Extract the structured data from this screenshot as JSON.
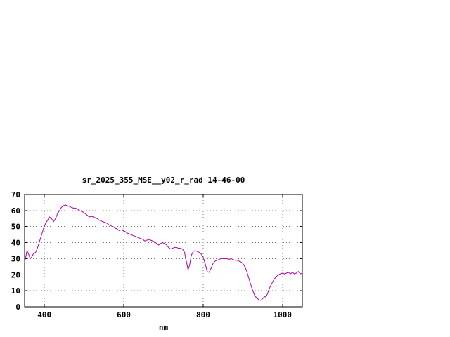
{
  "window": {
    "background": "#ffffff"
  },
  "chart_data": {
    "type": "line",
    "title": "sr_2025_355_MSE__y02_r_rad 14-46-00",
    "xlabel": "nm",
    "ylabel": "",
    "xlim": [
      350,
      1050
    ],
    "ylim": [
      0,
      70
    ],
    "xticks": [
      400,
      600,
      800,
      1000
    ],
    "yticks": [
      0,
      10,
      20,
      30,
      40,
      50,
      60,
      70
    ],
    "grid": true,
    "legend": "none",
    "line_color": "#aa00aa",
    "border_color": "#000000",
    "grid_color": "#777777",
    "points": [
      [
        350,
        28
      ],
      [
        353,
        31
      ],
      [
        356,
        35
      ],
      [
        360,
        33
      ],
      [
        364,
        30
      ],
      [
        368,
        31
      ],
      [
        372,
        33
      ],
      [
        378,
        34
      ],
      [
        383,
        37
      ],
      [
        388,
        41
      ],
      [
        393,
        45
      ],
      [
        398,
        49
      ],
      [
        403,
        52
      ],
      [
        408,
        54
      ],
      [
        413,
        56
      ],
      [
        418,
        55
      ],
      [
        423,
        53
      ],
      [
        428,
        55
      ],
      [
        433,
        58
      ],
      [
        438,
        60
      ],
      [
        443,
        62
      ],
      [
        448,
        63
      ],
      [
        453,
        63.5
      ],
      [
        458,
        63
      ],
      [
        463,
        62.5
      ],
      [
        468,
        62
      ],
      [
        473,
        61.5
      ],
      [
        478,
        61.5
      ],
      [
        483,
        61
      ],
      [
        488,
        60
      ],
      [
        493,
        59.5
      ],
      [
        498,
        59
      ],
      [
        503,
        58
      ],
      [
        508,
        57
      ],
      [
        513,
        56
      ],
      [
        518,
        56.5
      ],
      [
        523,
        56
      ],
      [
        528,
        55.5
      ],
      [
        533,
        55
      ],
      [
        538,
        54
      ],
      [
        543,
        53.5
      ],
      [
        548,
        53
      ],
      [
        553,
        52.5
      ],
      [
        558,
        52
      ],
      [
        563,
        51
      ],
      [
        568,
        50.5
      ],
      [
        573,
        50
      ],
      [
        578,
        49
      ],
      [
        583,
        48.5
      ],
      [
        588,
        47.5
      ],
      [
        593,
        48
      ],
      [
        598,
        47.5
      ],
      [
        603,
        47
      ],
      [
        608,
        46
      ],
      [
        613,
        45.5
      ],
      [
        618,
        45
      ],
      [
        623,
        44.5
      ],
      [
        628,
        44
      ],
      [
        633,
        43.5
      ],
      [
        638,
        43
      ],
      [
        643,
        42.5
      ],
      [
        648,
        42
      ],
      [
        653,
        41
      ],
      [
        658,
        41.5
      ],
      [
        663,
        42
      ],
      [
        668,
        41.5
      ],
      [
        673,
        41
      ],
      [
        678,
        40.5
      ],
      [
        683,
        39.5
      ],
      [
        688,
        38.5
      ],
      [
        693,
        39.5
      ],
      [
        698,
        40
      ],
      [
        703,
        39.5
      ],
      [
        708,
        38.5
      ],
      [
        713,
        37
      ],
      [
        718,
        36
      ],
      [
        723,
        36.5
      ],
      [
        728,
        37
      ],
      [
        733,
        37
      ],
      [
        738,
        36.5
      ],
      [
        743,
        36.5
      ],
      [
        748,
        36
      ],
      [
        753,
        34
      ],
      [
        758,
        28
      ],
      [
        762,
        23
      ],
      [
        766,
        26
      ],
      [
        770,
        32
      ],
      [
        775,
        34.5
      ],
      [
        780,
        35
      ],
      [
        785,
        34.5
      ],
      [
        790,
        34
      ],
      [
        795,
        33
      ],
      [
        800,
        31
      ],
      [
        805,
        27
      ],
      [
        810,
        22
      ],
      [
        815,
        21.5
      ],
      [
        820,
        24
      ],
      [
        825,
        27
      ],
      [
        830,
        28.5
      ],
      [
        835,
        29
      ],
      [
        840,
        29.5
      ],
      [
        845,
        30
      ],
      [
        850,
        30
      ],
      [
        855,
        30
      ],
      [
        860,
        30
      ],
      [
        865,
        29.5
      ],
      [
        870,
        30
      ],
      [
        875,
        29.5
      ],
      [
        880,
        29
      ],
      [
        885,
        29
      ],
      [
        890,
        28.5
      ],
      [
        895,
        28
      ],
      [
        900,
        27
      ],
      [
        905,
        25
      ],
      [
        910,
        22
      ],
      [
        915,
        18
      ],
      [
        920,
        14
      ],
      [
        925,
        10
      ],
      [
        930,
        7
      ],
      [
        935,
        5.5
      ],
      [
        940,
        4.5
      ],
      [
        945,
        4
      ],
      [
        950,
        5
      ],
      [
        955,
        6.5
      ],
      [
        958,
        6
      ],
      [
        962,
        8
      ],
      [
        966,
        11
      ],
      [
        970,
        13
      ],
      [
        975,
        15.5
      ],
      [
        980,
        17.5
      ],
      [
        985,
        19
      ],
      [
        990,
        20
      ],
      [
        995,
        20.5
      ],
      [
        1000,
        21
      ],
      [
        1005,
        20.5
      ],
      [
        1010,
        21
      ],
      [
        1015,
        21.5
      ],
      [
        1020,
        20.5
      ],
      [
        1025,
        21.5
      ],
      [
        1030,
        20.5
      ],
      [
        1035,
        21
      ],
      [
        1040,
        22
      ],
      [
        1045,
        20.5
      ],
      [
        1050,
        21
      ]
    ]
  }
}
